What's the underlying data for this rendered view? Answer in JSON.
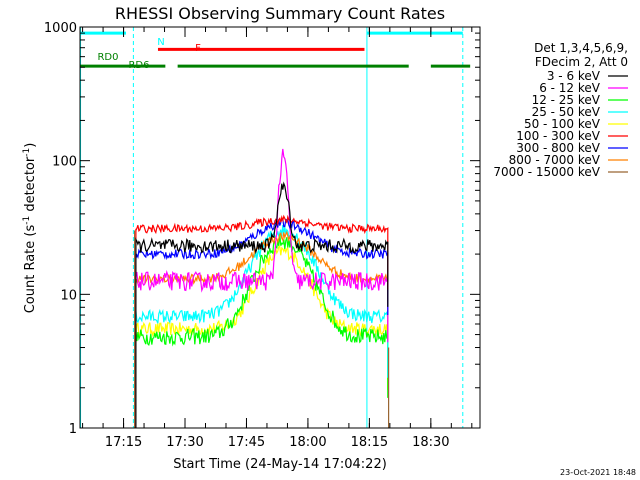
{
  "chart_data": {
    "type": "line",
    "title": "RHESSI Observing Summary Count Rates",
    "xlabel": "Start Time (24-May-14 17:04:22)",
    "ylabel_main": "Count Rate (s",
    "ylabel_sup1": "-1",
    "ylabel_mid": " detector",
    "ylabel_sup2": "-1",
    "ylabel_end": ")",
    "yscale": "log",
    "ylim": [
      1,
      1000
    ],
    "xlim": [
      17.0728,
      18.7
    ],
    "y_ticks": [
      {
        "value": 1,
        "label": "1"
      },
      {
        "value": 10,
        "label": "10"
      },
      {
        "value": 100,
        "label": "100"
      },
      {
        "value": 1000,
        "label": "1000"
      }
    ],
    "x_ticks": [
      {
        "value": 17.25,
        "label": "17:15"
      },
      {
        "value": 17.5,
        "label": "17:30"
      },
      {
        "value": 17.75,
        "label": "17:45"
      },
      {
        "value": 18.0,
        "label": "18:00"
      },
      {
        "value": 18.25,
        "label": "18:15"
      },
      {
        "value": 18.5,
        "label": "18:30"
      }
    ],
    "legend_header": [
      "Det 1,3,4,5,6,9,",
      "FDecim 2, Att 0"
    ],
    "series": [
      {
        "name": "3 - 6 keV",
        "color": "#000000",
        "base": 23,
        "peak": 63,
        "sigma": 0.028,
        "noise": 0.05,
        "data_start": 17.3,
        "data_end": 18.325
      },
      {
        "name": "6 - 12 keV",
        "color": "#ff00ff",
        "base": 12.5,
        "peak": 105,
        "sigma": 0.022,
        "noise": 0.07,
        "data_start": 17.3,
        "data_end": 18.325
      },
      {
        "name": "12 - 25 keV",
        "color": "#00ff00",
        "base": 4.8,
        "peak": 25,
        "sigma": 0.13,
        "noise": 0.06,
        "data_start": 17.3,
        "data_end": 18.325
      },
      {
        "name": "25 - 50 keV",
        "color": "#00ffff",
        "base": 6.8,
        "peak": 30,
        "sigma": 0.14,
        "noise": 0.05,
        "data_start": 17.3,
        "data_end": 18.325
      },
      {
        "name": "50 - 100 keV",
        "color": "#ffff00",
        "base": 5.5,
        "peak": 21,
        "sigma": 0.12,
        "noise": 0.05,
        "data_start": 17.3,
        "data_end": 18.325
      },
      {
        "name": "100 - 300 keV",
        "color": "#ff0000",
        "base": 31,
        "peak": 36,
        "sigma": 0.15,
        "noise": 0.03,
        "data_start": 17.3,
        "data_end": 18.325
      },
      {
        "name": "300 - 800 keV",
        "color": "#0000ff",
        "base": 20,
        "peak": 34,
        "sigma": 0.15,
        "noise": 0.035,
        "data_start": 17.3,
        "data_end": 18.325
      },
      {
        "name": "800 - 7000 keV",
        "color": "#ff8000",
        "base": 13,
        "peak": 27,
        "sigma": 0.15,
        "noise": 0.035,
        "data_start": 17.3,
        "data_end": 18.325
      },
      {
        "name": "7000 - 15000 keV",
        "color": "#996633",
        "base": 1,
        "peak": 1,
        "sigma": 0.1,
        "noise": 0,
        "data_start": 17.3,
        "data_end": 18.325
      }
    ],
    "bars": [
      {
        "label": "N",
        "color": "#00ffff",
        "value": 900,
        "segments": [
          [
            17.0728,
            17.26
          ],
          [
            18.24,
            18.63
          ]
        ]
      },
      {
        "label": "F",
        "color": "#ff0000",
        "value": 680,
        "segments": [
          [
            17.39,
            18.23
          ]
        ]
      },
      {
        "label": "RD0",
        "color": "#008000",
        "value": 510,
        "segments": [
          [
            17.0728,
            17.42
          ],
          [
            17.47,
            18.41
          ],
          [
            18.5,
            18.66
          ]
        ]
      },
      {
        "label": "RD6",
        "color": "#008000",
        "value": 550,
        "segments": []
      }
    ],
    "vlines": [
      {
        "x": 17.075,
        "style": "solid"
      },
      {
        "x": 17.29,
        "style": "dashed"
      },
      {
        "x": 18.24,
        "style": "solid"
      },
      {
        "x": 18.63,
        "style": "dashed"
      }
    ],
    "footer": "23-Oct-2021 18:48"
  }
}
